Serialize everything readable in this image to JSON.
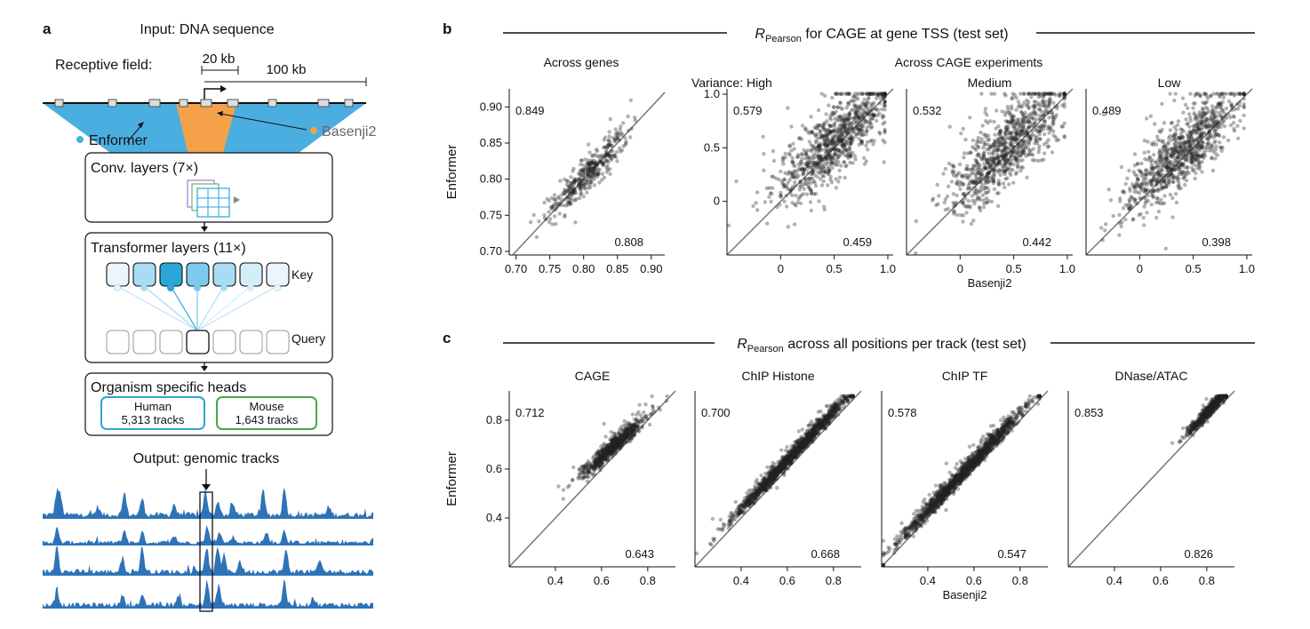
{
  "panels": {
    "a": "a",
    "b": "b",
    "c": "c"
  },
  "architecture": {
    "input_title": "Input: DNA sequence",
    "receptive_label": "Receptive field:",
    "kb20": "20 kb",
    "kb100": "100 kb",
    "enformer_label": "Enformer",
    "basenji_label": "Basenji2",
    "conv_label": "Conv. layers (7×)",
    "transformer_label": "Transformer layers (11×)",
    "key_label": "Key",
    "query_label": "Query",
    "heads_label": "Organism specific heads",
    "human_label": "Human",
    "human_tracks": "5,313 tracks",
    "mouse_label": "Mouse",
    "mouse_tracks": "1,643 tracks",
    "output_title": "Output: genomic tracks",
    "colors": {
      "enformer": "#4baee0",
      "basenji": "#f4a14a",
      "human": "#2aa6d8",
      "mouse": "#4aa84a",
      "track": "#2e73b8"
    }
  },
  "panel_b": {
    "title_r": "R",
    "title_sub": "Pearson",
    "title_rest": " for CAGE at gene TSS (test set)",
    "header_left": "Across genes",
    "header_right": "Across CAGE experiments",
    "variance_prefix": "Variance: "
  },
  "panel_c": {
    "title_r": "R",
    "title_sub": "Pearson",
    "title_rest": " across all positions per track (test set)"
  },
  "chart_data": [
    {
      "id": "b1",
      "type": "scatter",
      "title": "Across genes",
      "ylabel": "Enformer",
      "xlabel": "",
      "xlim": [
        0.69,
        0.92
      ],
      "ylim": [
        0.695,
        0.925
      ],
      "xticks": [
        0.7,
        0.75,
        0.8,
        0.85,
        0.9
      ],
      "yticks": [
        0.7,
        0.75,
        0.8,
        0.85,
        0.9
      ],
      "tick_labels_x": [
        "0.70",
        "0.75",
        "0.80",
        "0.85",
        "0.90"
      ],
      "tick_labels_y": [
        "0.70",
        "0.75",
        "0.80",
        "0.85",
        "0.90"
      ],
      "enformer_r": "0.849",
      "basenji_r": "0.808",
      "diagonal": true,
      "cloud": {
        "n": 380,
        "x_center": 0.805,
        "x_sd": 0.03,
        "slope": 0.95,
        "offset": 0.04,
        "noise": 0.012
      }
    },
    {
      "id": "b2",
      "type": "scatter",
      "title": "High",
      "ylabel": "",
      "xlabel": "",
      "xlim": [
        -0.5,
        1.05
      ],
      "ylim": [
        -0.5,
        1.05
      ],
      "xticks": [
        0,
        0.5,
        1.0
      ],
      "yticks": [
        0,
        0.5,
        1.0
      ],
      "tick_labels_x": [
        "0",
        "0.5",
        "1.0"
      ],
      "tick_labels_y": [
        "0",
        "0.5",
        "1.0"
      ],
      "enformer_r": "0.579",
      "basenji_r": "0.459",
      "diagonal": true,
      "cloud": {
        "n": 900,
        "x_center": 0.5,
        "x_sd": 0.27,
        "slope": 0.8,
        "offset": 0.16,
        "noise": 0.17
      }
    },
    {
      "id": "b3",
      "type": "scatter",
      "title": "Medium",
      "ylabel": "",
      "xlabel": "Basenji2",
      "xlim": [
        -0.5,
        1.05
      ],
      "ylim": [
        -0.5,
        1.05
      ],
      "xticks": [
        0,
        0.5,
        1.0
      ],
      "yticks": [],
      "tick_labels_x": [
        "0",
        "0.5",
        "1.0"
      ],
      "tick_labels_y": [],
      "enformer_r": "0.532",
      "basenji_r": "0.442",
      "diagonal": true,
      "cloud": {
        "n": 900,
        "x_center": 0.45,
        "x_sd": 0.28,
        "slope": 0.85,
        "offset": 0.12,
        "noise": 0.17
      }
    },
    {
      "id": "b4",
      "type": "scatter",
      "title": "Low",
      "ylabel": "",
      "xlabel": "",
      "xlim": [
        -0.5,
        1.05
      ],
      "ylim": [
        -0.5,
        1.05
      ],
      "xticks": [
        0,
        0.5,
        1.0
      ],
      "yticks": [],
      "tick_labels_x": [
        "0",
        "0.5",
        "1.0"
      ],
      "tick_labels_y": [],
      "enformer_r": "0.489",
      "basenji_r": "0.398",
      "diagonal": true,
      "cloud": {
        "n": 900,
        "x_center": 0.4,
        "x_sd": 0.27,
        "slope": 0.85,
        "offset": 0.12,
        "noise": 0.16
      }
    },
    {
      "id": "c1",
      "type": "scatter",
      "title": "CAGE",
      "ylabel": "Enformer",
      "xlabel": "",
      "xlim": [
        0.2,
        0.92
      ],
      "ylim": [
        0.2,
        0.92
      ],
      "xticks": [
        0.4,
        0.6,
        0.8
      ],
      "yticks": [
        0.4,
        0.6,
        0.8
      ],
      "tick_labels_x": [
        "0.4",
        "0.6",
        "0.8"
      ],
      "tick_labels_y": [
        "0.4",
        "0.6",
        "0.8"
      ],
      "enformer_r": "0.712",
      "basenji_r": "0.643",
      "diagonal": true,
      "cloud": {
        "n": 700,
        "x_center": 0.65,
        "x_sd": 0.07,
        "slope": 0.85,
        "offset": 0.14,
        "noise": 0.018
      }
    },
    {
      "id": "c2",
      "type": "scatter",
      "title": "ChIP Histone",
      "ylabel": "",
      "xlabel": "",
      "xlim": [
        0.2,
        0.92
      ],
      "ylim": [
        0.2,
        0.92
      ],
      "xticks": [
        0.4,
        0.6,
        0.8
      ],
      "yticks": [],
      "tick_labels_x": [
        "0.4",
        "0.6",
        "0.8"
      ],
      "tick_labels_y": [],
      "enformer_r": "0.700",
      "basenji_r": "0.668",
      "diagonal": true,
      "cloud": {
        "n": 1600,
        "x_center": 0.63,
        "x_sd": 0.13,
        "slope": 1.0,
        "offset": 0.035,
        "noise": 0.014
      }
    },
    {
      "id": "c3",
      "type": "scatter",
      "title": "ChIP TF",
      "ylabel": "",
      "xlabel": "Basenji2",
      "xlim": [
        0.2,
        0.92
      ],
      "ylim": [
        0.2,
        0.92
      ],
      "xticks": [
        0.4,
        0.6,
        0.8
      ],
      "yticks": [],
      "tick_labels_x": [
        "0.4",
        "0.6",
        "0.8"
      ],
      "tick_labels_y": [],
      "enformer_r": "0.578",
      "basenji_r": "0.547",
      "diagonal": true,
      "cloud": {
        "n": 1500,
        "x_center": 0.56,
        "x_sd": 0.14,
        "slope": 1.0,
        "offset": 0.03,
        "noise": 0.016
      }
    },
    {
      "id": "c4",
      "type": "scatter",
      "title": "DNase/ATAC",
      "ylabel": "",
      "xlabel": "",
      "xlim": [
        0.2,
        0.92
      ],
      "ylim": [
        0.2,
        0.92
      ],
      "xticks": [
        0.4,
        0.6,
        0.8
      ],
      "yticks": [],
      "tick_labels_x": [
        "0.4",
        "0.6",
        "0.8"
      ],
      "tick_labels_y": [],
      "enformer_r": "0.853",
      "basenji_r": "0.826",
      "diagonal": true,
      "cloud": {
        "n": 700,
        "x_center": 0.82,
        "x_sd": 0.05,
        "slope": 1.0,
        "offset": 0.03,
        "noise": 0.012
      }
    }
  ]
}
